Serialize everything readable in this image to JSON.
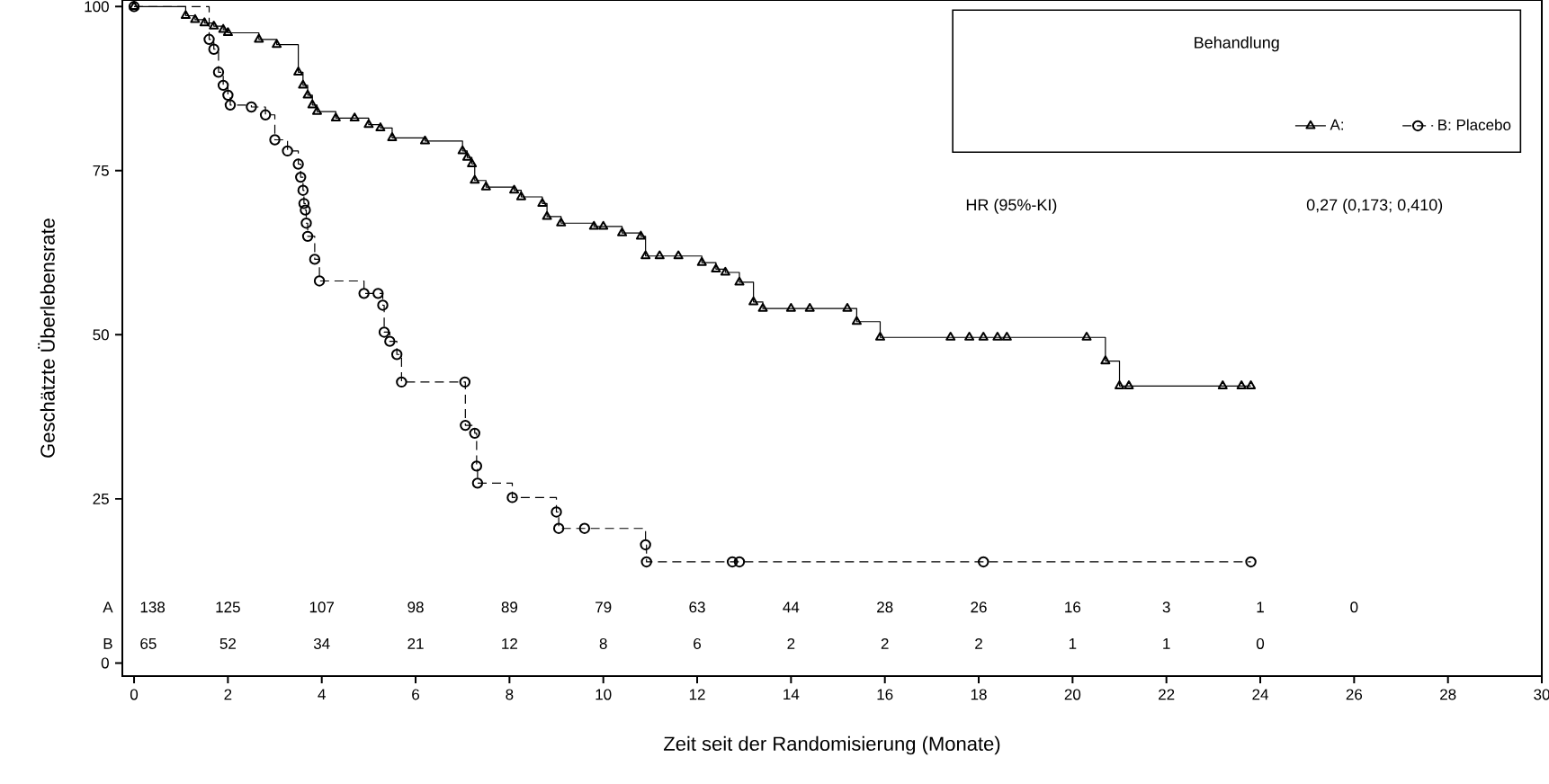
{
  "chart_data": {
    "type": "step",
    "xlabel": "Zeit seit der Randomisierung (Monate)",
    "ylabel": "Geschätzte Überlebensrate",
    "legend_title": "Behandlung",
    "legend": "top right",
    "xlim": [
      -0.25,
      30
    ],
    "ylim": [
      -2,
      101
    ],
    "xticks": [
      0,
      2,
      4,
      6,
      8,
      10,
      12,
      14,
      16,
      18,
      20,
      22,
      24,
      26,
      28,
      30
    ],
    "yticks": [
      0,
      25,
      50,
      75,
      100
    ],
    "grid": false,
    "series": [
      {
        "name": "A:",
        "color": "#000000",
        "marker": "triangle",
        "line_style": "solid",
        "x": [
          0,
          1.1,
          1.3,
          1.5,
          1.7,
          1.9,
          2.0,
          2.66,
          3.04,
          3.5,
          3.6,
          3.7,
          3.8,
          3.9,
          4.3,
          4.7,
          5.0,
          5.25,
          5.5,
          6.2,
          7.0,
          7.1,
          7.2,
          7.26,
          7.5,
          8.1,
          8.25,
          8.7,
          8.8,
          9.1,
          9.8,
          10.0,
          10.4,
          10.8,
          10.9,
          11.2,
          11.6,
          12.1,
          12.4,
          12.6,
          12.9,
          13.2,
          13.4,
          14.0,
          14.4,
          15.2,
          15.4,
          15.9,
          17.4,
          17.8,
          18.1,
          18.4,
          18.6,
          20.3,
          20.7,
          21.0,
          21.2,
          23.2,
          23.6,
          23.8
        ],
        "values": [
          100,
          98.6,
          98,
          97.5,
          97,
          96.5,
          96,
          95,
          94.2,
          90,
          88,
          86.5,
          85,
          84,
          83,
          83,
          82,
          81.5,
          80,
          79.5,
          78,
          77,
          76,
          73.5,
          72.5,
          72,
          71,
          70,
          68,
          67,
          66.5,
          66.5,
          65.5,
          65,
          62,
          62,
          62,
          61,
          60,
          59.5,
          58,
          55,
          54,
          54,
          54,
          54,
          52,
          49.6,
          49.6,
          49.6,
          49.6,
          49.6,
          49.6,
          49.6,
          46,
          42.2,
          42.2,
          42.2,
          42.2,
          42.2
        ]
      },
      {
        "name": "B: Placebo",
        "color": "#000000",
        "marker": "circle",
        "line_style": "dashed",
        "x": [
          0,
          1.6,
          1.7,
          1.8,
          1.9,
          2.0,
          2.05,
          2.5,
          2.8,
          3.0,
          3.27,
          3.5,
          3.55,
          3.6,
          3.62,
          3.65,
          3.67,
          3.7,
          3.85,
          3.95,
          4.9,
          5.2,
          5.3,
          5.33,
          5.45,
          5.6,
          5.7,
          7.05,
          7.06,
          7.26,
          7.3,
          7.32,
          8.06,
          9.0,
          9.05,
          9.6,
          10.9,
          10.92,
          12.75,
          12.9,
          18.1,
          23.8
        ],
        "values": [
          100,
          95,
          93.5,
          90,
          88,
          86.5,
          85,
          84.7,
          83.5,
          79.7,
          78,
          76,
          74,
          72,
          70,
          69,
          67,
          65,
          61.5,
          58.2,
          56.3,
          56.3,
          54.5,
          50.4,
          49,
          47,
          42.8,
          42.8,
          36.2,
          35,
          30,
          27.4,
          25.2,
          23,
          20.5,
          20.5,
          18,
          15.4,
          15.4,
          15.4,
          15.4,
          15.4
        ]
      }
    ],
    "annotations": [
      "HR (95%-KI)",
      "0,27 (0,173; 0,410)",
      "A",
      "138",
      "125",
      "107",
      "98",
      "89",
      "79",
      "63",
      "44",
      "28",
      "26",
      "16",
      "3",
      "1",
      "0",
      "B",
      "65",
      "52",
      "34",
      "21",
      "12",
      "8",
      "6",
      "2",
      "2",
      "2",
      "1",
      "1",
      "0"
    ]
  }
}
